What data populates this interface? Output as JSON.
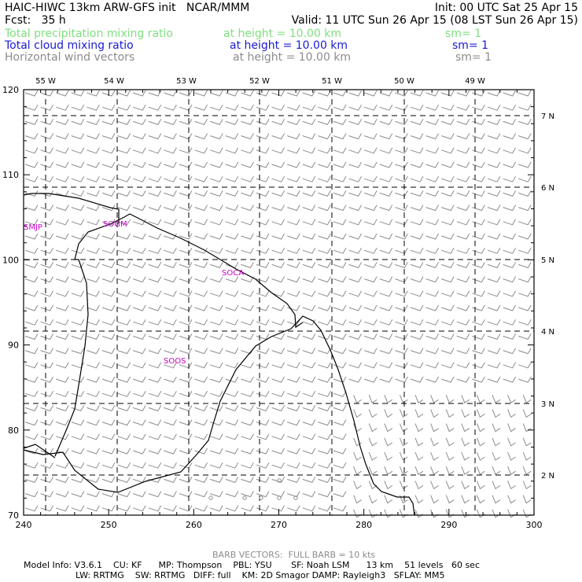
{
  "header": {
    "line1_left": "HAIC-HIWC 13km ARW-GFS init   NCAR/MMM",
    "line1_right": "Init: 00 UTC Sat 25 Apr 15",
    "line2_left": "Fcst:   35 h",
    "line2_right": "Valid: 11 UTC Sun 26 Apr 15 (08 LST Sun 26 Apr 15)"
  },
  "fields": [
    {
      "name": "Total precipitation mixing ratio",
      "height": "at height = 10.00 km",
      "sm": "sm= 1",
      "color": "#7fe07f"
    },
    {
      "name": "Total cloud mixing ratio",
      "height": "at height = 10.00 km",
      "sm": "sm= 1",
      "color": "#1a1ad6"
    },
    {
      "name": "Horizontal wind vectors",
      "height": "at height = 10.00 km",
      "sm": "sm= 1",
      "color": "#8c8c8c"
    }
  ],
  "map": {
    "lon_labels": [
      "55 W",
      "54 W",
      "53 W",
      "52 W",
      "51 W",
      "50 W",
      "49 W"
    ],
    "lat_labels": [
      "7 N",
      "6 N",
      "5 N",
      "4 N",
      "3 N",
      "2 N"
    ],
    "x_ticks": [
      "240",
      "250",
      "260",
      "270",
      "280",
      "290",
      "300"
    ],
    "y_ticks": [
      "70",
      "80",
      "90",
      "100",
      "110",
      "120"
    ],
    "stations": [
      "SMJP",
      "SOGM",
      "SOCA",
      "SOOS"
    ],
    "station_color": "#cc00cc",
    "coast_color": "#000000",
    "barb_color": "#8c8c8c"
  },
  "footer": {
    "barb": "BARB VECTORS:  FULL BARB = 10 kts",
    "line1": "Model Info: V3.6.1    CU: KF      MP: Thompson    PBL: YSU       SF: Noah LSM      13 km    51 levels   60 sec",
    "line2": "LW: RRTMG    SW: RRTMG   DIFF: full    KM: 2D Smagor DAMP: Rayleigh3   SFLAY: MM5"
  }
}
